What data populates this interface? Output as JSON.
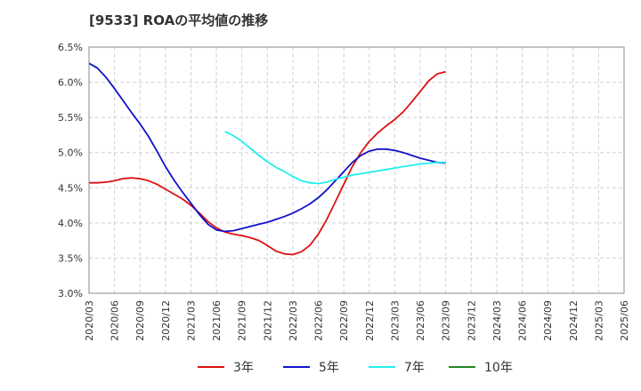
{
  "chart_data": {
    "type": "line",
    "title": "[9533]  ROAの平均値の推移",
    "xlabel": "",
    "ylabel": "",
    "ylim": [
      3.0,
      6.5
    ],
    "y_ticks": [
      "3.0%",
      "3.5%",
      "4.0%",
      "4.5%",
      "5.0%",
      "5.5%",
      "6.0%",
      "6.5%"
    ],
    "x_ticks": [
      "2020/03",
      "2020/06",
      "2020/09",
      "2020/12",
      "2021/03",
      "2021/06",
      "2021/09",
      "2021/12",
      "2022/03",
      "2022/06",
      "2022/09",
      "2022/12",
      "2023/03",
      "2023/06",
      "2023/09",
      "2023/12",
      "2024/03",
      "2024/06",
      "2024/09",
      "2024/12",
      "2025/03",
      "2025/06"
    ],
    "grid": true,
    "legend_position": "bottom",
    "series": [
      {
        "name": "3年",
        "color": "#dd1111",
        "start_index": 0,
        "values": [
          4.57,
          4.57,
          4.58,
          4.6,
          4.63,
          4.64,
          4.63,
          4.6,
          4.55,
          4.48,
          4.41,
          4.34,
          4.25,
          4.14,
          4.02,
          3.93,
          3.87,
          3.84,
          3.82,
          3.79,
          3.75,
          3.68,
          3.6,
          3.56,
          3.55,
          3.59,
          3.68,
          3.84,
          4.05,
          4.3,
          4.55,
          4.8,
          5.0,
          5.16,
          5.28,
          5.38,
          5.47,
          5.58,
          5.72,
          5.87,
          6.02,
          6.12,
          6.15
        ]
      },
      {
        "name": "5年",
        "color": "#1111cc",
        "start_index": 0,
        "values": [
          6.27,
          6.2,
          6.07,
          5.91,
          5.74,
          5.57,
          5.41,
          5.23,
          5.02,
          4.8,
          4.61,
          4.44,
          4.28,
          4.12,
          3.98,
          3.9,
          3.88,
          3.89,
          3.92,
          3.95,
          3.98,
          4.01,
          4.05,
          4.09,
          4.14,
          4.2,
          4.27,
          4.36,
          4.47,
          4.6,
          4.73,
          4.86,
          4.96,
          5.02,
          5.05,
          5.05,
          5.03,
          5.0,
          4.96,
          4.92,
          4.89,
          4.86,
          4.85
        ]
      },
      {
        "name": "7年",
        "color": "#22eeee",
        "start_index": 16,
        "values": [
          5.3,
          5.24,
          5.16,
          5.06,
          4.96,
          4.87,
          4.79,
          4.73,
          4.66,
          4.6,
          4.57,
          4.56,
          4.58,
          4.62,
          4.65,
          4.68,
          4.7,
          4.72,
          4.74,
          4.76,
          4.78,
          4.8,
          4.82,
          4.84,
          4.85,
          4.86,
          4.86
        ]
      },
      {
        "name": "10年",
        "color": "#228822",
        "start_index": 0,
        "values": []
      }
    ]
  }
}
